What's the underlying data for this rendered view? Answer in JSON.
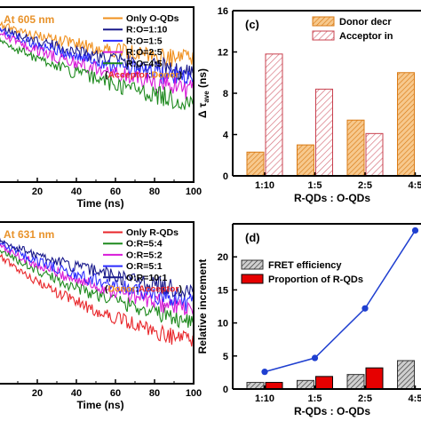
{
  "chart_data": [
    {
      "type": "line",
      "panel": "top-left",
      "annotation": "At 605 nm",
      "xlabel": "Time (ns)",
      "ylabel": "",
      "xlim": [
        0,
        100
      ],
      "ylim": [
        0.08,
        1.0
      ],
      "yscale": "log",
      "x_ticks": [
        "20",
        "40",
        "60",
        "80",
        "100"
      ],
      "legend_note": {
        "prefix": "(",
        "a": "Acceptor",
        "sep": ":",
        "b": "Donor",
        "suffix": ")",
        "a_color": "#e8262a",
        "b_color": "#f0901e"
      },
      "series": [
        {
          "name": "Only O-QDs",
          "color": "#f0901e",
          "start": 0.78,
          "end": 0.46
        },
        {
          "name": "R:O=1:10",
          "color": "#1a1a8c",
          "start": 0.74,
          "end": 0.39
        },
        {
          "name": "R:O=1:5",
          "color": "#2b2bff",
          "start": 0.72,
          "end": 0.35
        },
        {
          "name": "R:O=2:5",
          "color": "#d81ad8",
          "start": 0.69,
          "end": 0.3
        },
        {
          "name": "R:O=4:5",
          "color": "#1e8a1e",
          "start": 0.63,
          "end": 0.25
        }
      ]
    },
    {
      "type": "bar",
      "panel": "top-right",
      "panel_label": "(c)",
      "categories": [
        "1:10",
        "1:5",
        "2:5",
        "4:5"
      ],
      "xlabel": "R-QDs : O-QDs",
      "ylabel": "Δ τave (ns)",
      "ylim": [
        0,
        16
      ],
      "y_ticks": [
        "0",
        "4",
        "8",
        "12",
        "16"
      ],
      "series": [
        {
          "name": "Donor decr",
          "color": "#f5b36b",
          "values": [
            2.3,
            3.0,
            5.4,
            10.0
          ]
        },
        {
          "name": "Acceptor in",
          "color": "#e8a0a6",
          "values": [
            11.8,
            8.4,
            4.1,
            0
          ]
        }
      ]
    },
    {
      "type": "line",
      "panel": "bottom-left",
      "annotation": "At 631 nm",
      "xlabel": "Time (ns)",
      "ylabel": "",
      "xlim": [
        0,
        100
      ],
      "ylim": [
        0.08,
        1.0
      ],
      "yscale": "log",
      "x_ticks": [
        "20",
        "40",
        "60",
        "80",
        "100"
      ],
      "legend_note": {
        "prefix": "(",
        "a": "Donor",
        "sep": ":",
        "b": "Acceptor",
        "suffix": ")",
        "a_color": "#f0901e",
        "b_color": "#e8262a"
      },
      "series": [
        {
          "name": "Only R-QDs",
          "color": "#e8262a",
          "start": 0.6,
          "end": 0.15
        },
        {
          "name": "O:R=5:4",
          "color": "#1e8a1e",
          "start": 0.66,
          "end": 0.21
        },
        {
          "name": "O:R=5:2",
          "color": "#d81ad8",
          "start": 0.7,
          "end": 0.25
        },
        {
          "name": "O:R=5:1",
          "color": "#2b2bff",
          "start": 0.73,
          "end": 0.28
        },
        {
          "name": "O:R=10:1",
          "color": "#1a1a8c",
          "start": 0.76,
          "end": 0.34
        }
      ]
    },
    {
      "type": "bar",
      "panel": "bottom-right",
      "panel_label": "(d)",
      "categories": [
        "1:10",
        "1:5",
        "2:5",
        "4:5"
      ],
      "xlabel": "R-QDs : O-QDs",
      "ylabel": "Relative increment",
      "ylim": [
        0,
        25
      ],
      "y_ticks": [
        "0",
        "5",
        "10",
        "15",
        "20"
      ],
      "series": [
        {
          "name": "FRET efficiency",
          "color": "#c8c8c8",
          "values": [
            1.0,
            1.3,
            2.2,
            4.3
          ]
        },
        {
          "name": "Proportion of R-QDs",
          "color": "#e60000",
          "values": [
            1.0,
            1.9,
            3.2,
            0
          ]
        }
      ],
      "line_series": {
        "color": "#1f3fd0",
        "values": [
          2.6,
          4.7,
          12.2,
          24.0
        ]
      }
    }
  ]
}
